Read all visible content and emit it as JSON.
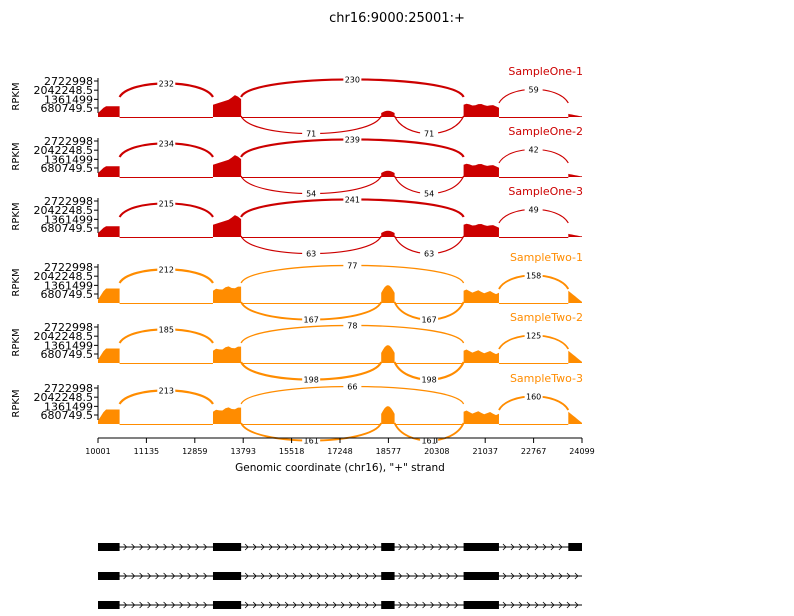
{
  "title": "chr16:9000:25001:+",
  "chart_data": {
    "type": "area",
    "title": "chr16:9000:25001:+",
    "xlabel": "Genomic coordinate (chr16), \"+\" strand",
    "ylabel": "RPKM",
    "xlim": [
      10001,
      24099
    ],
    "x_ticks": [
      "10001",
      "11135",
      "12859",
      "13793",
      "15518",
      "17248",
      "18577",
      "20308",
      "21037",
      "22767",
      "24099"
    ],
    "y_ticks": [
      "2722998",
      "2042248.5",
      "1361499",
      "680749.5"
    ],
    "exons": [
      [
        10001,
        10630
      ],
      [
        13350,
        14170
      ],
      [
        18250,
        18640
      ],
      [
        20650,
        21680
      ],
      [
        23700,
        24099
      ]
    ],
    "junctions": [
      "exon1-exon2",
      "exon2-exon4",
      "exon2-exon3",
      "exon3-exon4",
      "exon4-exon5"
    ],
    "series": [
      {
        "name": "SampleOne-1",
        "color": "#cc0000",
        "junction_counts": [
          232,
          230,
          71,
          71,
          59
        ]
      },
      {
        "name": "SampleOne-2",
        "color": "#cc0000",
        "junction_counts": [
          234,
          239,
          54,
          54,
          42
        ]
      },
      {
        "name": "SampleOne-3",
        "color": "#cc0000",
        "junction_counts": [
          215,
          241,
          63,
          63,
          49
        ]
      },
      {
        "name": "SampleTwo-1",
        "color": "#ff8c00",
        "junction_counts": [
          212,
          77,
          167,
          167,
          158
        ]
      },
      {
        "name": "SampleTwo-2",
        "color": "#ff8c00",
        "junction_counts": [
          185,
          78,
          198,
          198,
          125
        ]
      },
      {
        "name": "SampleTwo-3",
        "color": "#ff8c00",
        "junction_counts": [
          213,
          66,
          161,
          161,
          160
        ]
      }
    ],
    "transcripts": [
      {
        "exons": [
          [
            10001,
            10630
          ],
          [
            13350,
            14170
          ],
          [
            18250,
            18640
          ],
          [
            20650,
            21680
          ],
          [
            23700,
            24099
          ]
        ]
      },
      {
        "exons": [
          [
            10001,
            10630
          ],
          [
            13350,
            14170
          ],
          [
            18250,
            18640
          ],
          [
            20650,
            21680
          ]
        ]
      },
      {
        "exons": [
          [
            10001,
            10630
          ],
          [
            13350,
            14170
          ],
          [
            18250,
            18640
          ],
          [
            20650,
            21680
          ]
        ]
      }
    ],
    "grid": false
  }
}
